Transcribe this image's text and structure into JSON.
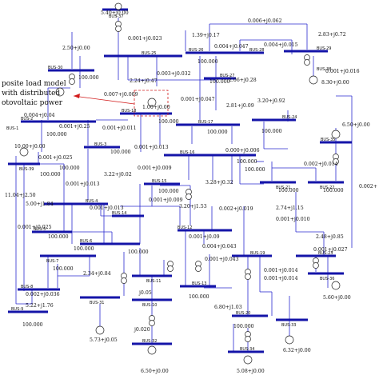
{
  "annotation": {
    "line1": "posite load model",
    "line2": "with distributed",
    "line3": "otovoltaic power"
  },
  "buses": {
    "b37": "BUS-37",
    "b25": "BUS-25",
    "b30": "BUS-30",
    "b26": "BUS-26",
    "b28": "BUS-28",
    "b29": "BUS-29",
    "b38": "BUS-38",
    "b27": "BUS-27",
    "b2": "BUS-2",
    "b18": "BUS-18",
    "b17": "BUS-17",
    "b24": "BUS-24",
    "b1": "BUS-1",
    "b3": "BUS-3",
    "b16": "BUS-16",
    "b35": "BUS-35",
    "b39": "BUS-39",
    "b15": "BUS-15",
    "b21": "BUS-21",
    "b22": "BUS-22",
    "b4": "BUS-4",
    "b14": "BUS-14",
    "b5": "BUS-5",
    "b6": "BUS-6",
    "b12": "BUS-12",
    "b19": "BUS-19",
    "b23": "BUS-23",
    "b7": "BUS-7",
    "b11": "BUS-11",
    "b13": "BUS-13",
    "b36": "BUS-36",
    "b8": "BUS-8",
    "b31": "BUS-31",
    "b10": "BUS-10",
    "b20": "BUS-20",
    "b33": "BUS-33",
    "b32": "BUS-32",
    "b34": "BUS-34",
    "b9": "BUS-9"
  },
  "values": {
    "v1": "5.40+j0.00",
    "v2": "0.001+j0.023",
    "v3": "1.39+j0.17",
    "v4": "0.006+j0.062",
    "v5": "2.83+j0.72",
    "v6": "2.50+j0.00",
    "v7": "0.004+j0.047",
    "v8": "0.004+j0.015",
    "v9": "100.000",
    "v10": "2.24+j0.47",
    "v11": "0.003+j0.032",
    "v12": "0.001+j0.016",
    "v13": "100.000",
    "v14": "2.06+j0.28",
    "v15": "100.000",
    "v16": "0.007+j0.009",
    "v17": "0.001+j0.047",
    "v18": "8.30+j0.00",
    "v19": "1.00+j0.00",
    "v20": "2.81+j0.09",
    "v21": "3.20+j0.92",
    "v22": "100.000",
    "v23": "0.004+j0.04",
    "v24": "100.000",
    "v25": "0.001+j0.25",
    "v26": "0.001+j0.011",
    "v27": "0.001+j0.013",
    "v28": "100.000",
    "v29": "100.000",
    "v30": "6.50+j0.00",
    "v31": "100.000",
    "v32": "0.000+j0.006",
    "v33": "100.000",
    "v34": "0.002+j0.014",
    "v35": "10.00+j0.00",
    "v36": "0.001+j0.025",
    "v37": "100.000",
    "v38": "100.000",
    "v39": "0.001+j0.009",
    "v40": "100.000",
    "v41": "3.22+j0.02",
    "v42": "0.001+j0.013",
    "v43": "100.000",
    "v44": "0.002+",
    "v45": "100.000",
    "v46": "11.04+j2.50",
    "v47": "0.001+j0.009",
    "v48": "3.28+j0.32",
    "v49": "100.000",
    "v50": "5.00+j1.84",
    "v51": "0.001+j0.013",
    "v52": "3.20+j1.53",
    "v53": "2.74+j1.15",
    "v54": "0.001+j0.025",
    "v55": "0.002+j0.019",
    "v56": "0.001+j0.010",
    "v57": "2.48+j0.85",
    "v58": "100.000",
    "v59": "0.001+j0.09",
    "v60": "0.001+j0.043",
    "v61": "0.001+j0.027",
    "v62": "100.000",
    "v63": "100.000",
    "v64": "0.004+j0.043",
    "v65": "2.34+j0.84",
    "v66": "0.001+j0.014",
    "v67": "100.000",
    "v68": "5.60+j0.00",
    "v69": "0.002+j0.036",
    "v70": "j0.05",
    "v71": "100.000",
    "v72": "5.22+j1.76",
    "v73": "100.000",
    "v74": "5.73+j0.05",
    "v75": "j0.020",
    "v76": "0.001+j0.014",
    "v77": "6.80+j1.03",
    "v78": "6.32+j0.00",
    "v79": "6.50+j0.00",
    "v80": "5.08+j0.00",
    "v81": "100.000"
  }
}
